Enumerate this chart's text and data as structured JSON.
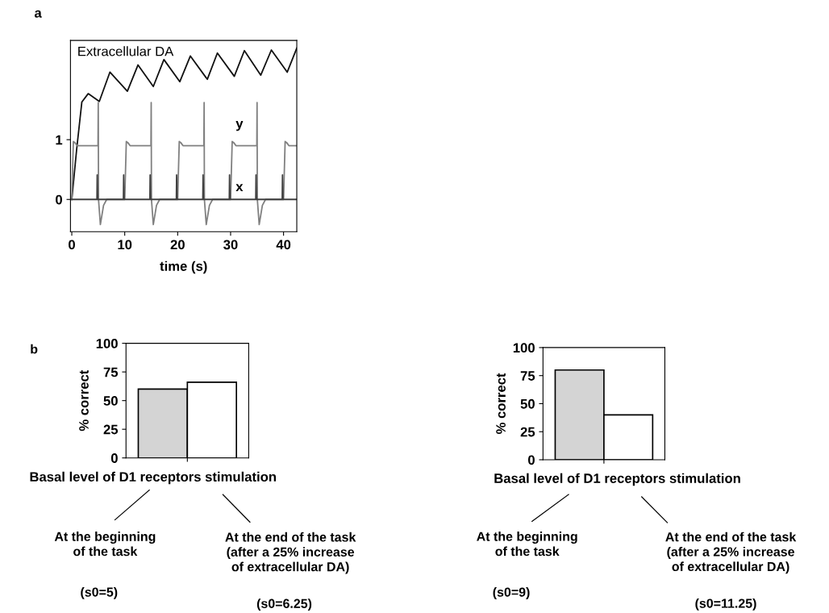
{
  "chart_data": [
    {
      "type": "line",
      "title": "a",
      "xlabel": "time (s)",
      "xlim": [
        -0.25,
        42.5
      ],
      "ylim": [
        -0.54,
        2.66
      ],
      "xticks": [
        0,
        10,
        20,
        30,
        40
      ],
      "yticks": [
        0,
        1
      ],
      "legend": false,
      "grid": false,
      "series": [
        {
          "name": "Extracellular DA",
          "color": "#111111",
          "x": [
            0,
            0.9,
            1.9,
            3.1,
            5.2,
            7.2,
            10.5,
            12.5,
            15.4,
            17.4,
            20.4,
            22.4,
            25.6,
            27.5,
            30.7,
            32.6,
            35.7,
            37.7,
            40.7,
            42.5
          ],
          "values": [
            0,
            0.82,
            1.63,
            1.77,
            1.64,
            2.13,
            1.81,
            2.25,
            1.89,
            2.34,
            1.97,
            2.4,
            2.01,
            2.45,
            2.06,
            2.49,
            2.08,
            2.5,
            2.13,
            2.53
          ]
        },
        {
          "name": "y",
          "color": "#808080",
          "x": [
            0,
            0.3,
            0.6,
            1,
            4.95,
            5,
            5.05,
            5.4,
            6,
            6.6,
            9.9,
            10,
            10.3,
            10.6,
            11,
            14.95,
            15,
            15.05,
            15.4,
            16,
            16.6,
            19.9,
            20,
            20.3,
            20.6,
            21,
            24.95,
            25,
            25.05,
            25.4,
            26,
            26.6,
            29.9,
            30,
            30.3,
            30.6,
            31,
            34.95,
            35,
            35.05,
            35.4,
            36,
            36.6,
            39.9,
            40,
            40.3,
            40.6,
            41,
            42.5
          ],
          "values": [
            0,
            0.97,
            0.95,
            0.9,
            0.9,
            1.62,
            0,
            -0.42,
            -0.1,
            0,
            0,
            0,
            0.97,
            0.95,
            0.9,
            0.9,
            1.62,
            0,
            -0.42,
            -0.1,
            0,
            0,
            0,
            0.97,
            0.95,
            0.9,
            0.9,
            1.62,
            0,
            -0.42,
            -0.1,
            0,
            0,
            0,
            0.97,
            0.95,
            0.9,
            0.9,
            1.62,
            0,
            -0.42,
            -0.1,
            0,
            0,
            0,
            0.97,
            0.95,
            0.9,
            0.9
          ]
        },
        {
          "name": "x",
          "color": "#404040",
          "x": [
            0,
            4.75,
            4.8,
            4.9,
            9.75,
            9.8,
            9.9,
            14.75,
            14.8,
            14.9,
            19.75,
            19.8,
            19.9,
            24.75,
            24.8,
            24.9,
            29.75,
            29.8,
            29.9,
            34.75,
            34.8,
            34.9,
            39.75,
            39.8,
            39.9,
            42.5
          ],
          "values": [
            0,
            0,
            0.41,
            0,
            0,
            0.41,
            0,
            0,
            0.41,
            0,
            0,
            0.41,
            0,
            0,
            0.41,
            0,
            0,
            0.41,
            0,
            0,
            0.41,
            0,
            0,
            0.41,
            0,
            0
          ]
        }
      ]
    },
    {
      "type": "bar",
      "categories": [
        null,
        null
      ],
      "values": [
        60,
        66
      ],
      "colors": [
        "#d4d4d4",
        "#ffffff"
      ],
      "ylabel": "% correct",
      "xlabel": "Basal level of D1 receptors stimulation",
      "ylim": [
        0,
        100
      ],
      "yticks": [
        0,
        25,
        50,
        75,
        100
      ],
      "grid": false,
      "legend": false,
      "annotations": [
        "b",
        "At the beginning\nof the task",
        "(s0=5)",
        "At the end of the task\n(after a 25% increase\nof extracellular DA)",
        "(s0=6.25)"
      ]
    },
    {
      "type": "bar",
      "categories": [
        null,
        null
      ],
      "values": [
        80,
        40
      ],
      "colors": [
        "#d4d4d4",
        "#ffffff"
      ],
      "ylabel": "% correct",
      "xlabel": "Basal level of D1 receptors stimulation",
      "ylim": [
        0,
        100
      ],
      "yticks": [
        0,
        25,
        50,
        75,
        100
      ],
      "grid": false,
      "legend": false,
      "annotations": [
        "At the beginning\nof the task",
        "(s0=9)",
        "At the end of the task\n(after a 25% increase\nof extracellular DA)",
        "(s0=11.25)"
      ]
    }
  ]
}
